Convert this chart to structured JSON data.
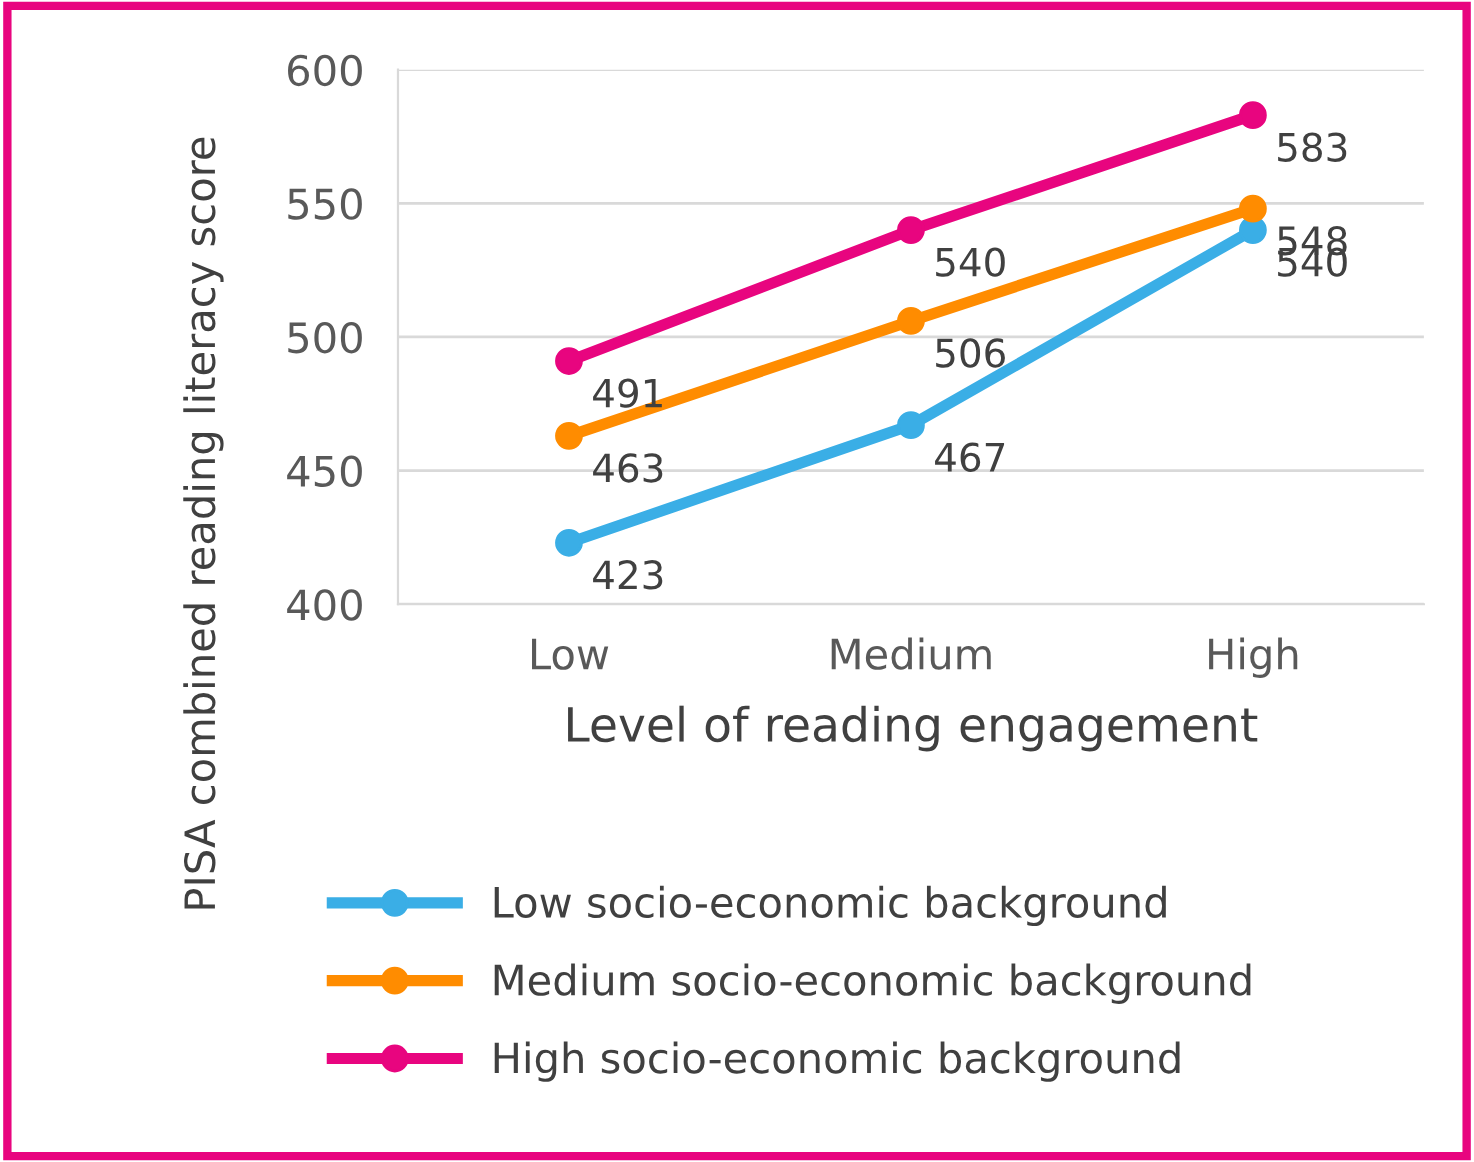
{
  "chart_data": {
    "type": "line",
    "xlabel": "Level of reading engagement",
    "ylabel": "PISA combined reading literacy score",
    "categories": [
      "Low",
      "Medium",
      "High"
    ],
    "series": [
      {
        "name": "Low socio-economic background",
        "color": "#3aaee6",
        "values": [
          423,
          467,
          540
        ]
      },
      {
        "name": "Medium socio-economic background",
        "color": "#ff8c00",
        "values": [
          463,
          506,
          548
        ]
      },
      {
        "name": "High socio-economic background",
        "color": "#e8057f",
        "values": [
          491,
          540,
          583
        ]
      }
    ],
    "ylim": [
      400,
      600
    ],
    "yticks": [
      400,
      450,
      500,
      550,
      600
    ],
    "grid": "y",
    "legend": "bottom",
    "marker": "circle",
    "line_style": "solid",
    "data_labels": true
  }
}
